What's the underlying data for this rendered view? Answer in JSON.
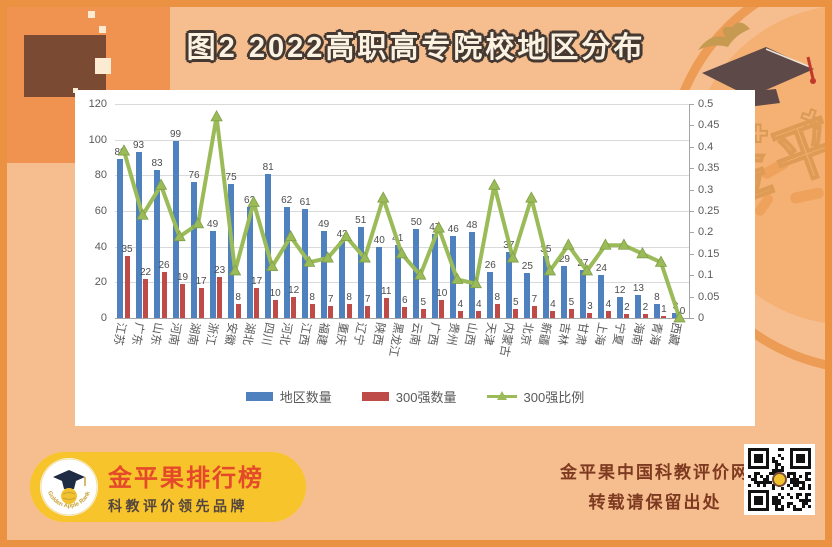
{
  "title": "图2  2022高职高专院校地区分布",
  "watermark": "金平果",
  "chart_data": {
    "type": "bar+line",
    "categories": [
      "江苏",
      "广东",
      "山东",
      "河南",
      "湖南",
      "浙江",
      "安徽",
      "湖北",
      "四川",
      "河北",
      "江西",
      "福建",
      "重庆",
      "辽宁",
      "陕西",
      "黑龙江",
      "云南",
      "广西",
      "贵州",
      "山西",
      "天津",
      "内蒙古",
      "北京",
      "新疆",
      "吉林",
      "甘肃",
      "上海",
      "宁夏",
      "海南",
      "青海",
      "西藏"
    ],
    "series": [
      {
        "name": "地区数量",
        "type": "bar",
        "axis": "left",
        "color": "#4E81BD",
        "values": [
          89,
          93,
          83,
          99,
          76,
          49,
          75,
          62,
          81,
          62,
          61,
          49,
          43,
          51,
          40,
          41,
          50,
          47,
          46,
          48,
          26,
          37,
          25,
          35,
          29,
          27,
          24,
          12,
          13,
          8,
          3
        ]
      },
      {
        "name": "300强数量",
        "type": "bar",
        "axis": "left",
        "color": "#BE4B48",
        "values": [
          35,
          22,
          26,
          19,
          17,
          23,
          8,
          17,
          10,
          12,
          8,
          7,
          8,
          7,
          11,
          6,
          5,
          10,
          4,
          4,
          8,
          5,
          7,
          4,
          5,
          3,
          4,
          2,
          2,
          1,
          0
        ]
      },
      {
        "name": "300强比例",
        "type": "line",
        "axis": "right",
        "color": "#9BBB59",
        "values": [
          0.39,
          0.24,
          0.31,
          0.19,
          0.22,
          0.47,
          0.11,
          0.27,
          0.12,
          0.19,
          0.13,
          0.14,
          0.19,
          0.14,
          0.28,
          0.15,
          0.1,
          0.21,
          0.09,
          0.08,
          0.31,
          0.14,
          0.28,
          0.11,
          0.17,
          0.11,
          0.17,
          0.17,
          0.15,
          0.13,
          0
        ]
      }
    ],
    "left_axis": {
      "min": 0,
      "max": 120,
      "step": 20,
      "ticks": [
        "0",
        "20",
        "40",
        "60",
        "80",
        "100",
        "120"
      ]
    },
    "right_axis": {
      "min": 0,
      "max": 0.5,
      "step": 0.05,
      "ticks": [
        "0",
        "0.05",
        "0.1",
        "0.15",
        "0.2",
        "0.25",
        "0.3",
        "0.35",
        "0.4",
        "0.45",
        "0.5"
      ]
    },
    "grid": true,
    "legend_position": "bottom",
    "data_labels": true
  },
  "footer": {
    "badge_line1": "金平果排行榜",
    "badge_line2": "科教评价领先品牌",
    "logo_arc_text": "Golden Apple Ranking",
    "source_line1": "金平果中国科教评价网",
    "source_line2": "转载请保留出处"
  },
  "colors": {
    "background": "#F6BE8E",
    "frame": "#EB9142",
    "bar_blue": "#4E81BD",
    "bar_red": "#BE4B48",
    "line_green": "#9BBB59",
    "badge_yellow": "#F7C52B",
    "brand_red": "#E4492A",
    "title_fill": "#FBF2E2",
    "title_outline": "#453931",
    "source_text": "#7E3A20"
  }
}
